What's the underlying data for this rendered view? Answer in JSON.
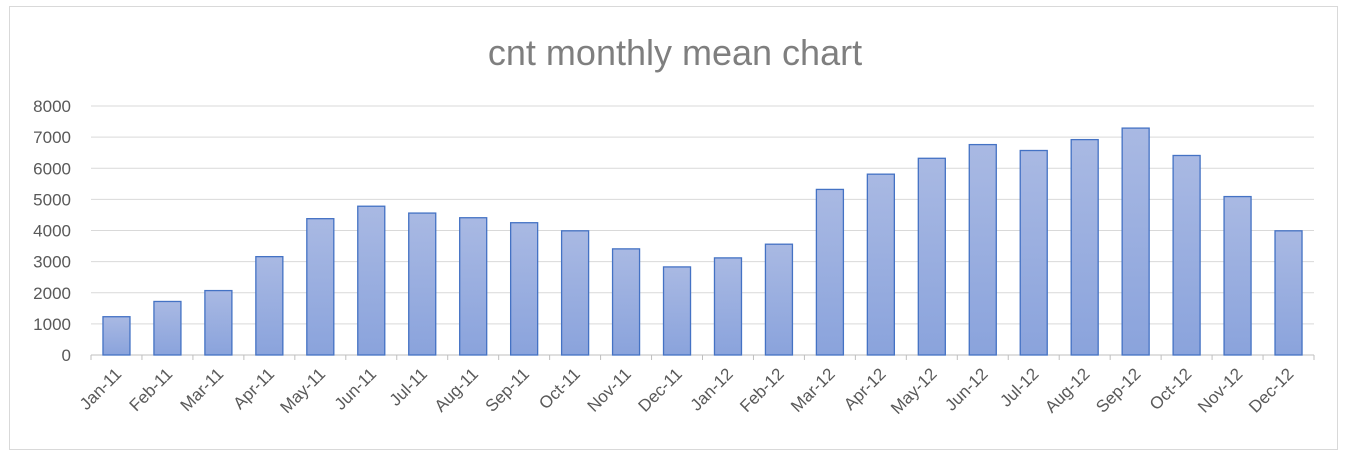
{
  "chart_data": {
    "type": "bar",
    "title": "cnt monthly mean chart",
    "xlabel": "",
    "ylabel": "",
    "ylim": [
      0,
      8000
    ],
    "yticks": [
      0,
      1000,
      2000,
      3000,
      4000,
      5000,
      6000,
      7000,
      8000
    ],
    "grid": true,
    "legend": "none",
    "categories": [
      "Jan-11",
      "Feb-11",
      "Mar-11",
      "Apr-11",
      "May-11",
      "Jun-11",
      "Jul-11",
      "Aug-11",
      "Sep-11",
      "Oct-11",
      "Nov-11",
      "Dec-11",
      "Jan-12",
      "Feb-12",
      "Mar-12",
      "Apr-12",
      "May-12",
      "Jun-12",
      "Jul-12",
      "Aug-12",
      "Sep-12",
      "Oct-12",
      "Nov-12",
      "Dec-12"
    ],
    "values": [
      1230,
      1720,
      2070,
      3160,
      4380,
      4780,
      4560,
      4410,
      4250,
      3990,
      3410,
      2830,
      3120,
      3560,
      5320,
      5810,
      6320,
      6760,
      6570,
      6920,
      7290,
      6410,
      5090,
      3990
    ],
    "colors": {
      "bar_top": "#a9b9e3",
      "bar_bottom": "#8aa3dc",
      "bar_border": "#4472c4"
    }
  }
}
